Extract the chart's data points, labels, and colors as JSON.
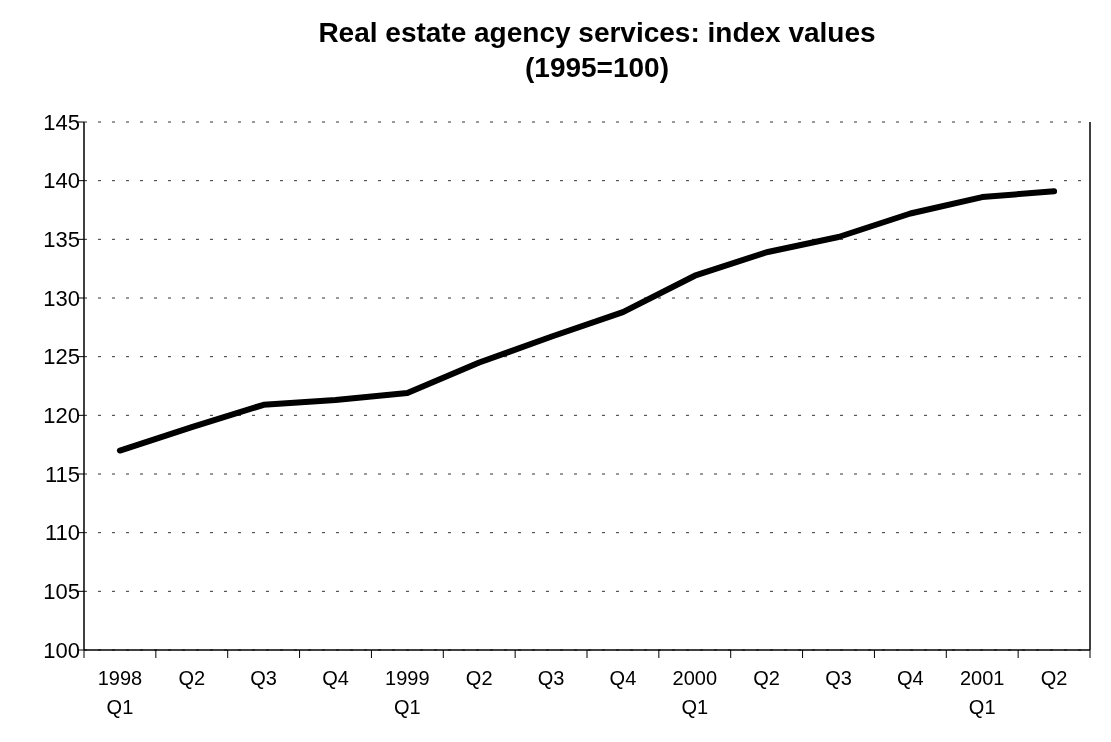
{
  "chart_data": {
    "type": "line",
    "title": "Real estate agency services: index values\n(1995=100)",
    "categories": [
      "1998\nQ1",
      "Q2",
      "Q3",
      "Q4",
      "1999\nQ1",
      "Q2",
      "Q3",
      "Q4",
      "2000\nQ1",
      "Q2",
      "Q3",
      "Q4",
      "2001\nQ1",
      "Q2"
    ],
    "series": [
      {
        "color": "#000000",
        "values": [
          117.0,
          119.0,
          120.9,
          121.3,
          121.9,
          124.5,
          126.7,
          128.8,
          131.9,
          133.9,
          135.2,
          137.2,
          138.6,
          139.1
        ]
      }
    ],
    "ylim": [
      100,
      145
    ],
    "yticks": [
      100,
      105,
      110,
      115,
      120,
      125,
      130,
      135,
      140,
      145
    ],
    "grid": "y",
    "marker": "none",
    "line_style": "solid"
  }
}
